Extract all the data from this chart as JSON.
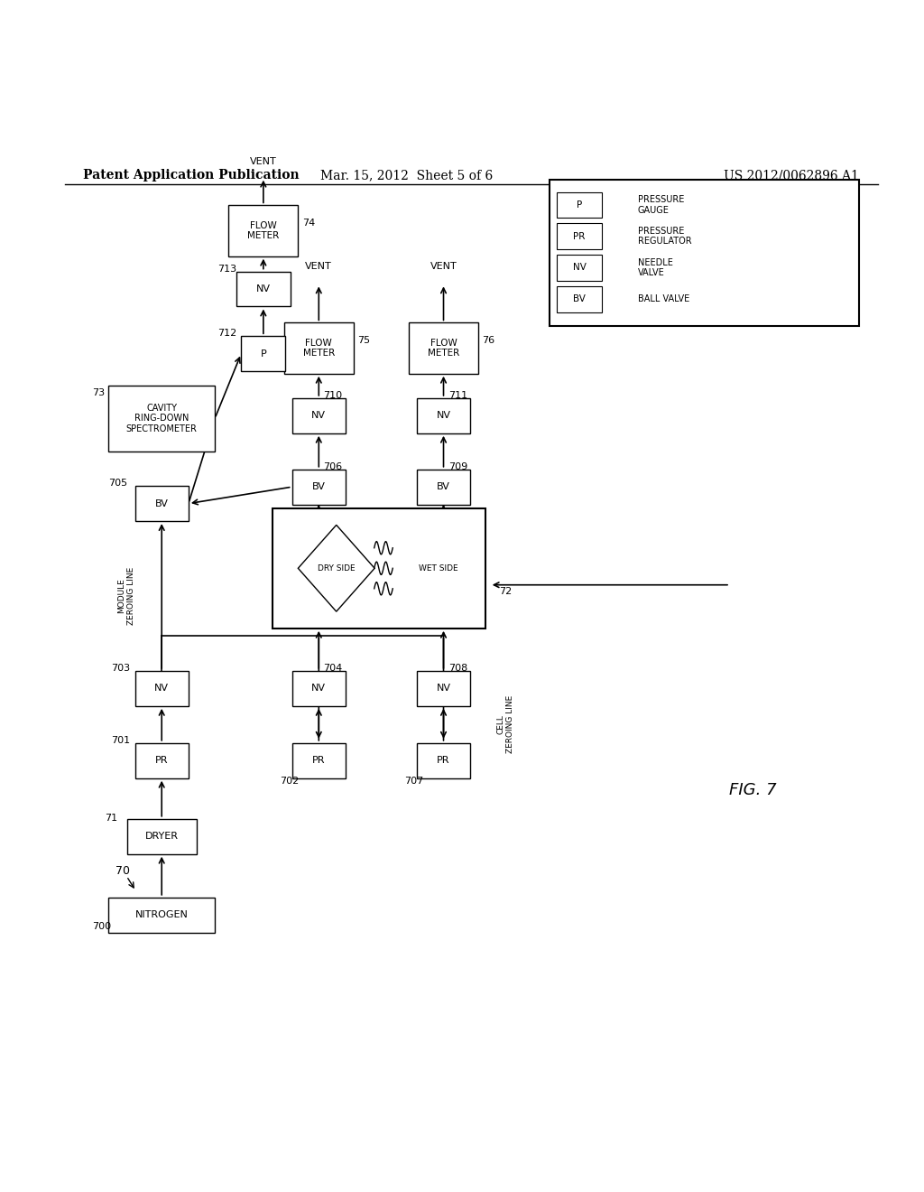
{
  "bg_color": "#ffffff",
  "title_left": "Patent Application Publication",
  "title_mid": "Mar. 15, 2012  Sheet 5 of 6",
  "title_right": "US 2012/0062896 A1",
  "fig_label": "FIG. 7",
  "main_label": "70"
}
